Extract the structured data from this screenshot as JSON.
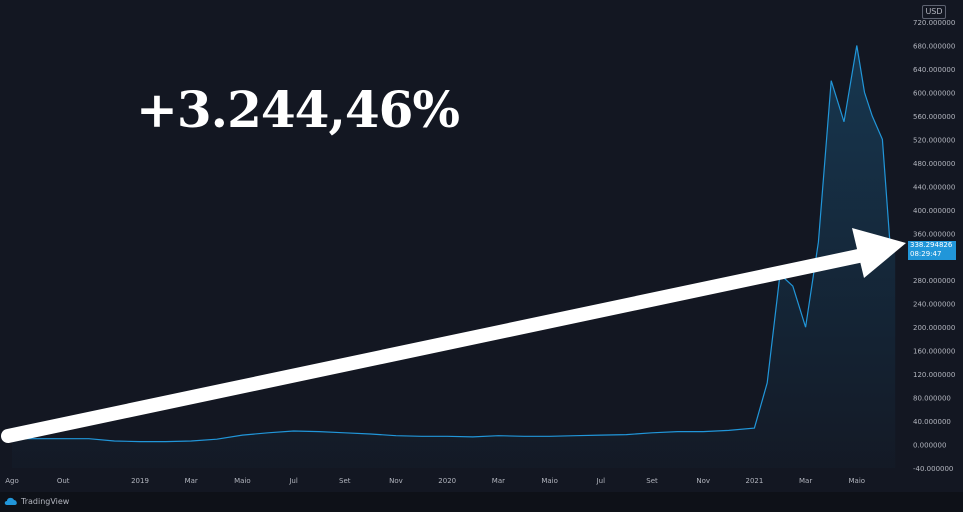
{
  "headline": "+3.244,46%",
  "currency": "USD",
  "brand": "TradingView",
  "price_tag": {
    "price": "338.294826",
    "countdown": "08:29:47"
  },
  "colors": {
    "background": "#131722",
    "line": "#2196d9",
    "arrow": "#ffffff",
    "axis_text": "#b2b5be"
  },
  "chart_data": {
    "type": "line",
    "title": "",
    "xlabel": "",
    "ylabel": "",
    "grid": false,
    "ylim": [
      -40,
      720
    ],
    "y_ticks": [
      "720.000000",
      "680.000000",
      "640.000000",
      "600.000000",
      "560.000000",
      "520.000000",
      "480.000000",
      "440.000000",
      "400.000000",
      "360.000000",
      "280.000000",
      "240.000000",
      "200.000000",
      "160.000000",
      "120.000000",
      "80.000000",
      "40.000000",
      "0.000000",
      "-40.000000"
    ],
    "y_tick_values": [
      720,
      680,
      640,
      600,
      560,
      520,
      480,
      440,
      400,
      360,
      280,
      240,
      200,
      160,
      120,
      80,
      40,
      0,
      -40
    ],
    "x_ticks": [
      "Ago",
      "Out",
      "2019",
      "Mar",
      "Maio",
      "Jul",
      "Set",
      "Nov",
      "2020",
      "Mar",
      "Maio",
      "Jul",
      "Set",
      "Nov",
      "2021",
      "Mar",
      "Maio"
    ],
    "x_tick_months": [
      0,
      2,
      5,
      7,
      9,
      11,
      13,
      15,
      17,
      19,
      21,
      23,
      25,
      27,
      29,
      31,
      33
    ],
    "x_start": "Ago 2018",
    "series": [
      {
        "x": [
          0,
          1,
          2,
          3,
          4,
          5,
          6,
          7,
          8,
          9,
          10,
          11,
          12,
          13,
          14,
          15,
          16,
          17,
          18,
          19,
          20,
          21,
          22,
          23,
          24,
          25,
          26,
          27,
          28,
          29,
          29.5,
          30,
          30.5,
          31,
          31.5,
          32,
          32.5,
          33,
          33.3,
          33.6,
          34,
          34.3,
          34.5
        ],
        "values": [
          10,
          10,
          10,
          10,
          6,
          5,
          5,
          6,
          9,
          16,
          20,
          23,
          22,
          20,
          18,
          15,
          14,
          14,
          13,
          15,
          14,
          14,
          15,
          16,
          17,
          20,
          22,
          22,
          24,
          28,
          105,
          290,
          270,
          200,
          345,
          620,
          550,
          680,
          600,
          560,
          520,
          340,
          338.29
        ]
      }
    ],
    "annotations": [
      "+3.244,46%"
    ]
  }
}
